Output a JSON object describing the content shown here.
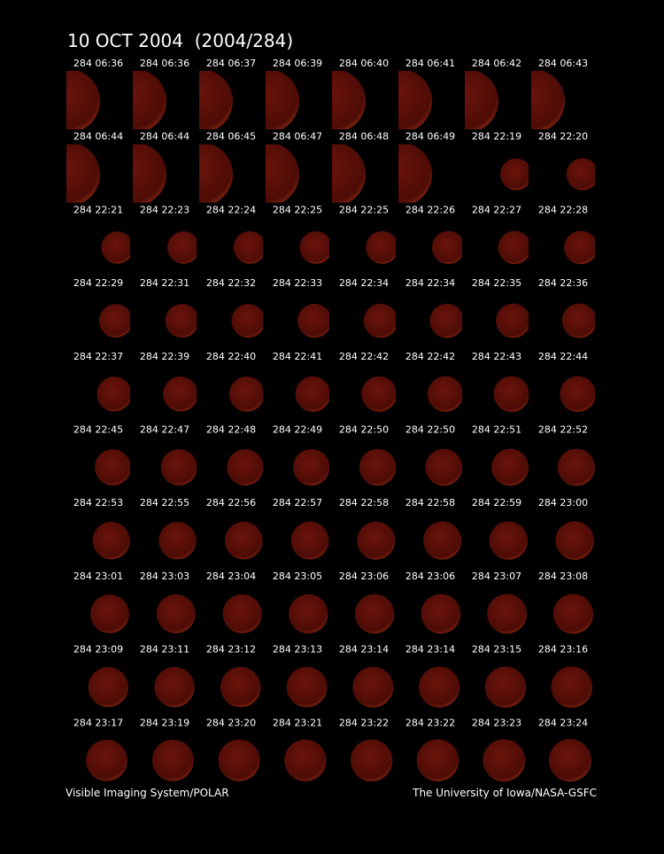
{
  "header": {
    "title": "10 OCT 2004  (2004/284)"
  },
  "frames": [
    "284 06:36",
    "284 06:36",
    "284 06:37",
    "284 06:39",
    "284 06:40",
    "284 06:41",
    "284 06:42",
    "284 06:43",
    "284 06:44",
    "284 06:44",
    "284 06:45",
    "284 06:47",
    "284 06:48",
    "284 06:49",
    "284 22:19",
    "284 22:20",
    "284 22:21",
    "284 22:23",
    "284 22:24",
    "284 22:25",
    "284 22:25",
    "284 22:26",
    "284 22:27",
    "284 22:28",
    "284 22:29",
    "284 22:31",
    "284 22:32",
    "284 22:33",
    "284 22:34",
    "284 22:34",
    "284 22:35",
    "284 22:36",
    "284 22:37",
    "284 22:39",
    "284 22:40",
    "284 22:41",
    "284 22:42",
    "284 22:42",
    "284 22:43",
    "284 22:44",
    "284 22:45",
    "284 22:47",
    "284 22:48",
    "284 22:49",
    "284 22:50",
    "284 22:50",
    "284 22:51",
    "284 22:52",
    "284 22:53",
    "284 22:55",
    "284 22:56",
    "284 22:57",
    "284 22:58",
    "284 22:58",
    "284 22:59",
    "284 23:00",
    "284 23:01",
    "284 23:03",
    "284 23:04",
    "284 23:05",
    "284 23:06",
    "284 23:06",
    "284 23:07",
    "284 23:08",
    "284 23:09",
    "284 23:11",
    "284 23:12",
    "284 23:13",
    "284 23:14",
    "284 23:14",
    "284 23:15",
    "284 23:16",
    "284 23:17",
    "284 23:19",
    "284 23:20",
    "284 23:21",
    "284 23:22",
    "284 23:22",
    "284 23:23",
    "284 23:24"
  ],
  "footer": {
    "left": "Visible Imaging System/POLAR",
    "right": "The University of Iowa/NASA-GSFC"
  }
}
